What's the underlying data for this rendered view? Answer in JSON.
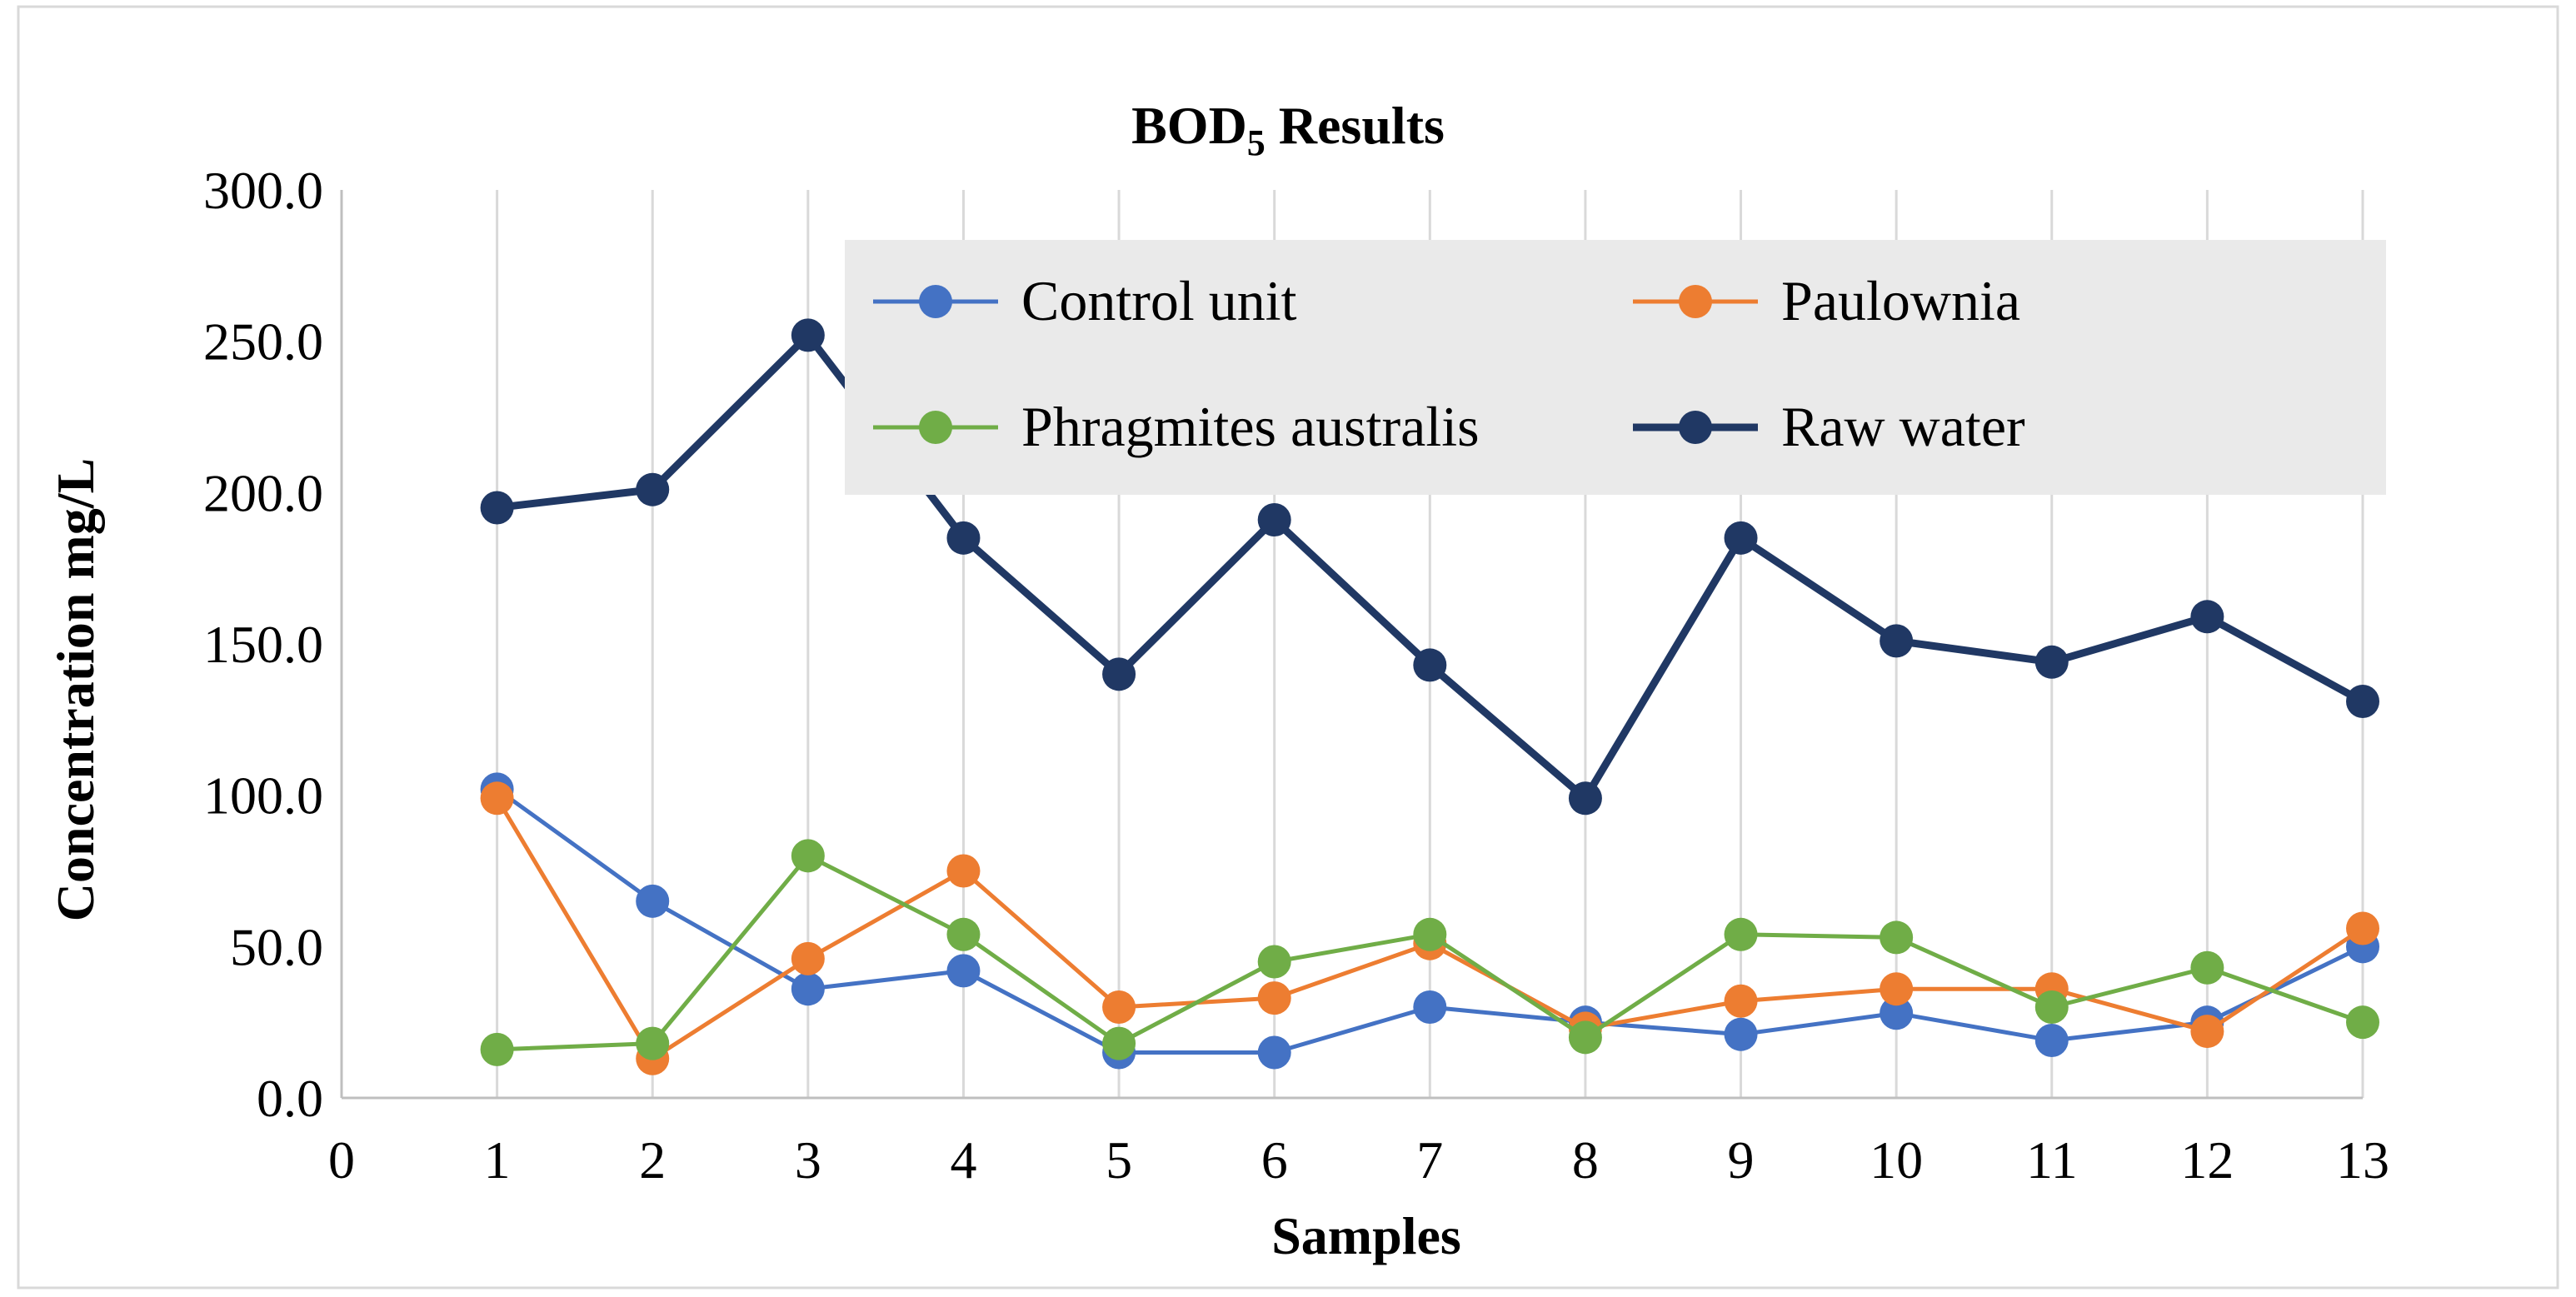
{
  "chart_data": {
    "type": "line",
    "title": "BOD5 Results",
    "title_main": "BOD",
    "title_subscript": "5",
    "title_suffix": " Results",
    "xlabel": "Samples",
    "ylabel": "Concentration mg/L",
    "xlim": [
      0,
      13
    ],
    "ylim": [
      0,
      300
    ],
    "x_ticks": [
      0,
      1,
      2,
      3,
      4,
      5,
      6,
      7,
      8,
      9,
      10,
      11,
      12,
      13
    ],
    "y_ticks": [
      0,
      50,
      100,
      150,
      200,
      250,
      300
    ],
    "y_tick_labels": [
      "0.0",
      "50.0",
      "100.0",
      "150.0",
      "200.0",
      "250.0",
      "300.0"
    ],
    "grid": "vertical",
    "legend_position": "top-right",
    "x": [
      1,
      2,
      3,
      4,
      5,
      6,
      7,
      8,
      9,
      10,
      11,
      12,
      13
    ],
    "series": [
      {
        "name": "Control unit",
        "color": "#4472C4",
        "values": [
          102,
          65,
          36,
          42,
          15,
          15,
          30,
          25,
          21,
          28,
          19,
          25,
          50
        ]
      },
      {
        "name": "Paulownia",
        "color": "#ED7D31",
        "values": [
          99,
          13,
          46,
          75,
          30,
          33,
          51,
          23,
          32,
          36,
          36,
          22,
          56
        ]
      },
      {
        "name": "Phragmites australis",
        "color": "#70AD47",
        "values": [
          16,
          18,
          80,
          54,
          18,
          45,
          54,
          20,
          54,
          53,
          30,
          43,
          25
        ]
      },
      {
        "name": "Raw water",
        "color": "#203864",
        "values": [
          195,
          201,
          252,
          185,
          140,
          191,
          143,
          99,
          185,
          151,
          144,
          159,
          131
        ]
      }
    ]
  }
}
